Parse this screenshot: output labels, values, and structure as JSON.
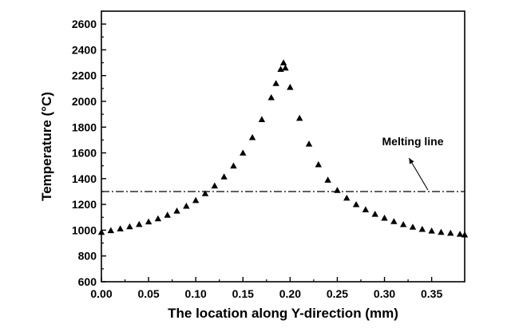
{
  "chart_data": {
    "type": "scatter",
    "title": "",
    "xlabel": "The location along Y-direction (mm)",
    "ylabel": "Temperature (°C)",
    "xlim": [
      0.0,
      0.385
    ],
    "ylim": [
      600,
      2700
    ],
    "xticks": [
      "0.00",
      "0.05",
      "0.10",
      "0.15",
      "0.20",
      "0.25",
      "0.30",
      "0.35"
    ],
    "yticks": [
      "600",
      "800",
      "1000",
      "1200",
      "1400",
      "1600",
      "1800",
      "2000",
      "2200",
      "2400",
      "2600"
    ],
    "grid": false,
    "legend": "none",
    "marker": "triangle-up",
    "marker_color": "#000000",
    "series": [
      {
        "values": {
          "x": [
            0.0,
            0.01,
            0.02,
            0.03,
            0.04,
            0.05,
            0.06,
            0.07,
            0.08,
            0.09,
            0.1,
            0.11,
            0.12,
            0.13,
            0.14,
            0.15,
            0.16,
            0.17,
            0.18,
            0.185,
            0.19,
            0.193,
            0.195,
            0.2,
            0.21,
            0.22,
            0.23,
            0.24,
            0.25,
            0.26,
            0.27,
            0.28,
            0.29,
            0.3,
            0.31,
            0.32,
            0.33,
            0.34,
            0.35,
            0.36,
            0.37,
            0.38,
            0.385
          ],
          "y": [
            985,
            998,
            1012,
            1028,
            1046,
            1066,
            1090,
            1118,
            1150,
            1188,
            1232,
            1285,
            1345,
            1415,
            1500,
            1600,
            1720,
            1860,
            2030,
            2140,
            2250,
            2300,
            2260,
            2110,
            1870,
            1670,
            1510,
            1390,
            1310,
            1250,
            1200,
            1160,
            1125,
            1095,
            1068,
            1045,
            1025,
            1008,
            995,
            985,
            978,
            970,
            965
          ]
        }
      }
    ],
    "annotations": [
      {
        "text": "Melting line",
        "reference_line": {
          "y": 1300,
          "style": "dash-dot"
        },
        "arrow": true
      }
    ]
  }
}
